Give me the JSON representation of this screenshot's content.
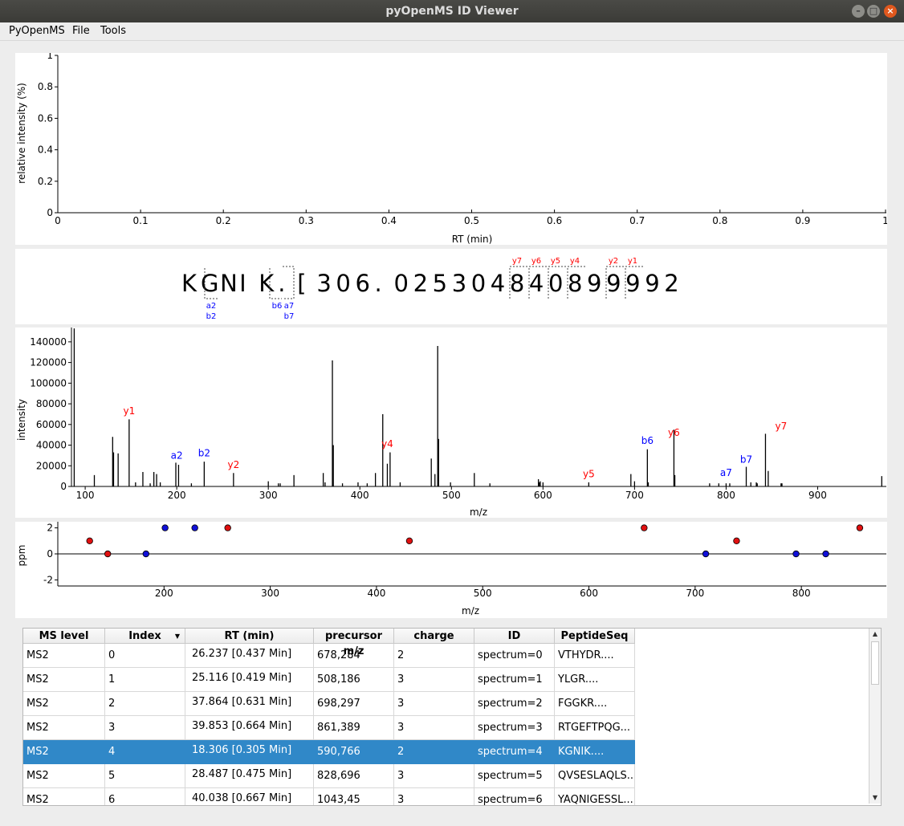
{
  "window": {
    "title": "pyOpenMS ID Viewer"
  },
  "menu": [
    "PyOpenMS",
    "File",
    "Tools"
  ],
  "chrom_plot": {
    "ylabel": "relative intensity (%)",
    "xlabel": "RT (min)",
    "yticks": [
      "0",
      "0.2",
      "0.4",
      "0.6",
      "0.8",
      "1"
    ],
    "xticks": [
      "0",
      "0.1",
      "0.2",
      "0.3",
      "0.4",
      "0.5",
      "0.6",
      "0.7",
      "0.8",
      "0.9",
      "1"
    ]
  },
  "sequence": {
    "chars": [
      "K",
      "G",
      "N",
      "I",
      "K",
      ".",
      "[",
      "3",
      "0",
      "6",
      ".",
      "0",
      "2",
      "5",
      "3",
      "0",
      "4",
      "8",
      "4",
      "0",
      "8",
      "9",
      "9",
      "9",
      "9",
      "2"
    ],
    "y_labels": [
      "y7",
      "y6",
      "y5",
      "y4",
      "y2",
      "y1"
    ],
    "b_labels_top": [
      "a2",
      "b6",
      "a7"
    ],
    "b_labels_bottom": [
      "b2",
      "b7"
    ]
  },
  "chart_data": [
    {
      "type": "bar",
      "title": "",
      "xlabel": "m/z",
      "ylabel": "intensity",
      "xlim": [
        85,
        975
      ],
      "ylim": [
        0,
        150000
      ],
      "xticks": [
        "100",
        "200",
        "300",
        "400",
        "500",
        "600",
        "700",
        "800",
        "900"
      ],
      "yticks": [
        "0",
        "20000",
        "40000",
        "60000",
        "80000",
        "100000",
        "120000",
        "140000"
      ],
      "peaks_x": [
        88,
        110,
        130,
        131,
        136,
        148,
        155,
        163,
        171,
        175,
        178,
        182,
        199,
        202,
        216,
        230,
        262,
        300,
        311,
        313,
        328,
        360,
        362,
        370,
        371,
        381,
        398,
        408,
        417,
        425,
        430,
        433,
        444,
        478,
        482,
        485,
        486,
        499,
        525,
        542,
        595,
        596,
        597,
        600,
        650,
        696,
        700,
        714,
        715,
        743,
        744,
        782,
        792,
        800,
        804,
        822,
        827,
        833,
        834,
        843,
        846,
        860,
        861,
        970
      ],
      "peaks_y": [
        153000,
        11000,
        48000,
        33000,
        32000,
        65000,
        4000,
        14000,
        3000,
        14000,
        12000,
        4000,
        23000,
        21000,
        3000,
        24000,
        13000,
        5000,
        3000,
        3000,
        11000,
        13000,
        4000,
        122000,
        40000,
        3000,
        4000,
        3000,
        13000,
        70000,
        22000,
        33000,
        4000,
        27000,
        12000,
        136000,
        46000,
        4000,
        13000,
        3000,
        7000,
        4000,
        5000,
        4000,
        4000,
        12000,
        5000,
        36000,
        4000,
        55000,
        11000,
        3000,
        3000,
        3000,
        3000,
        19000,
        4000,
        4000,
        3000,
        51000,
        15000,
        3000,
        3000,
        10000
      ],
      "annotations": [
        {
          "label": "y1",
          "x": 148,
          "y": 70000,
          "color": "#ff0000"
        },
        {
          "label": "a2",
          "x": 200,
          "y": 27000,
          "color": "#0000ff"
        },
        {
          "label": "b2",
          "x": 230,
          "y": 29000,
          "color": "#0000ff"
        },
        {
          "label": "y2",
          "x": 262,
          "y": 18000,
          "color": "#ff0000"
        },
        {
          "label": "y4",
          "x": 430,
          "y": 38000,
          "color": "#ff0000"
        },
        {
          "label": "y5",
          "x": 650,
          "y": 9000,
          "color": "#ff0000"
        },
        {
          "label": "b6",
          "x": 714,
          "y": 41000,
          "color": "#0000ff"
        },
        {
          "label": "y6",
          "x": 743,
          "y": 49000,
          "color": "#ff0000"
        },
        {
          "label": "a7",
          "x": 800,
          "y": 10000,
          "color": "#0000ff"
        },
        {
          "label": "b7",
          "x": 822,
          "y": 23000,
          "color": "#0000ff"
        },
        {
          "label": "y7",
          "x": 860,
          "y": 55000,
          "color": "#ff0000"
        }
      ]
    },
    {
      "type": "scatter",
      "title": "",
      "xlabel": "m/z",
      "ylabel": "ppm",
      "xlim": [
        100,
        880
      ],
      "ylim": [
        -3,
        3
      ],
      "xticks": [
        "200",
        "300",
        "400",
        "500",
        "600",
        "700",
        "800"
      ],
      "yticks": [
        "-2",
        "0",
        "2"
      ],
      "points": [
        {
          "x": 130,
          "y": 1,
          "color": "red"
        },
        {
          "x": 147,
          "y": 0,
          "color": "red"
        },
        {
          "x": 183,
          "y": 0,
          "color": "blue"
        },
        {
          "x": 201,
          "y": 2,
          "color": "blue"
        },
        {
          "x": 229,
          "y": 2,
          "color": "blue"
        },
        {
          "x": 260,
          "y": 2,
          "color": "red"
        },
        {
          "x": 431,
          "y": 1,
          "color": "red"
        },
        {
          "x": 652,
          "y": 2,
          "color": "red"
        },
        {
          "x": 710,
          "y": 0,
          "color": "blue"
        },
        {
          "x": 739,
          "y": 1,
          "color": "red"
        },
        {
          "x": 795,
          "y": 0,
          "color": "blue"
        },
        {
          "x": 823,
          "y": 0,
          "color": "blue"
        },
        {
          "x": 855,
          "y": 2,
          "color": "red"
        }
      ]
    }
  ],
  "table": {
    "columns": [
      "MS level",
      "Index",
      "RT (min)",
      "precursor m/z",
      "charge",
      "ID",
      "PeptideSeq"
    ],
    "rows": [
      [
        "MS2",
        "0",
        "26.237  [0.437 Min]",
        "678,284",
        "2",
        "spectrum=0",
        "VTHYDR...."
      ],
      [
        "MS2",
        "1",
        "25.116  [0.419 Min]",
        "508,186",
        "3",
        "spectrum=1",
        "YLGR...."
      ],
      [
        "MS2",
        "2",
        "37.864  [0.631 Min]",
        "698,297",
        "3",
        "spectrum=2",
        "FGGKR...."
      ],
      [
        "MS2",
        "3",
        "39.853  [0.664 Min]",
        "861,389",
        "3",
        "spectrum=3",
        "RTGEFTPQG..."
      ],
      [
        "MS2",
        "4",
        "18.306  [0.305 Min]",
        "590,766",
        "2",
        "spectrum=4",
        "KGNIK...."
      ],
      [
        "MS2",
        "5",
        "28.487  [0.475 Min]",
        "828,696",
        "3",
        "spectrum=5",
        "QVSESLAQLS..."
      ],
      [
        "MS2",
        "6",
        "40.038  [0.667 Min]",
        "1043,45",
        "3",
        "spectrum=6",
        "YAQNIGESSL..."
      ]
    ],
    "selected_row": 4
  },
  "colors": {
    "selection": "#3088c8",
    "y_ion": "#ff0000",
    "b_ion": "#0000ff"
  }
}
